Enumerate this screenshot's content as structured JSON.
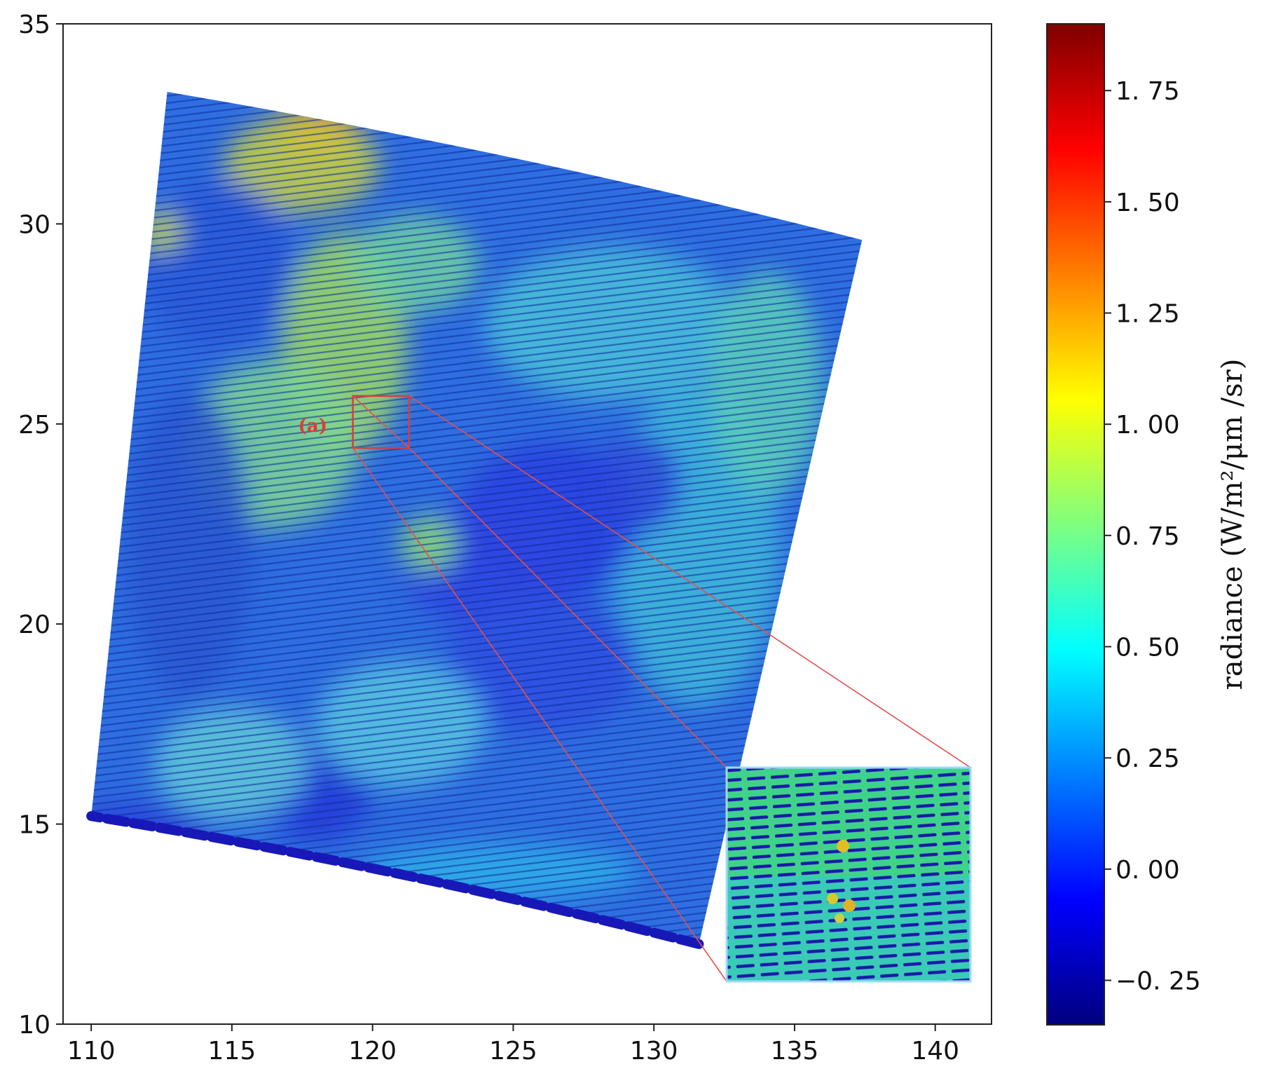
{
  "chart_data": {
    "type": "heatmap",
    "title": "",
    "xlabel": "",
    "ylabel": "",
    "xlim": [
      109,
      142
    ],
    "ylim": [
      10,
      35
    ],
    "x_ticks": [
      110,
      115,
      120,
      125,
      130,
      135,
      140
    ],
    "x_tick_labels": [
      "110",
      "115",
      "120",
      "125",
      "130",
      "135",
      "140"
    ],
    "y_ticks": [
      10,
      15,
      20,
      25,
      30,
      35
    ],
    "y_tick_labels": [
      "10",
      "15",
      "20",
      "25",
      "30",
      "35"
    ],
    "grid": false,
    "colormap": "jet",
    "swath_corners_lonlat": {
      "top_left": [
        112.7,
        33.3
      ],
      "top_right": [
        137.4,
        29.6
      ],
      "bottom_right": [
        131.6,
        12.0
      ],
      "bottom_left": [
        110.0,
        15.2
      ]
    },
    "typhoon_eye_center": [
      126.3,
      22.6
    ],
    "colorbar": {
      "label": "radiance (W/m²/μm /sr)",
      "range": [
        -0.35,
        1.9
      ],
      "ticks": [
        -0.25,
        0.0,
        0.25,
        0.5,
        0.75,
        1.0,
        1.25,
        1.5,
        1.75
      ],
      "tick_labels": [
        "−0. 25",
        "0. 00",
        "0. 25",
        "0. 50",
        "0. 75",
        "1. 00",
        "1. 25",
        "1. 50",
        "1. 75"
      ]
    },
    "annotation": {
      "label": "(a)",
      "box_lonlat": [
        [
          119.3,
          24.4
        ],
        [
          121.3,
          25.7
        ]
      ],
      "color": "#e03a3a"
    }
  }
}
